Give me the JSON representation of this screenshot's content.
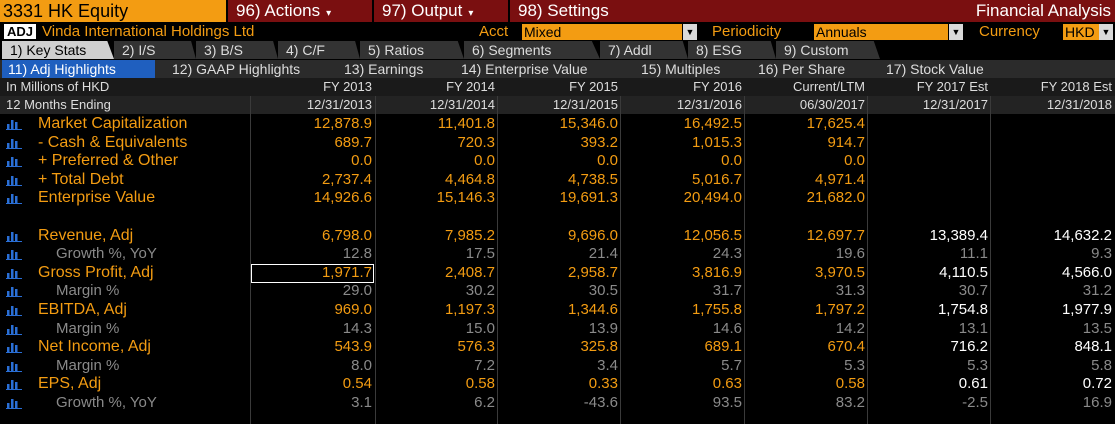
{
  "topbar": {
    "ticker": "3331 HK Equity",
    "menus": [
      {
        "label": "96) Actions",
        "caret": "▾"
      },
      {
        "label": "97) Output",
        "caret": "▾"
      },
      {
        "label": "98) Settings",
        "caret": ""
      }
    ],
    "title": "Financial Analysis"
  },
  "infobar": {
    "badge": "ADJ",
    "company": "Vinda International Holdings Ltd",
    "acct_label": "Acct",
    "acct_value": "Mixed",
    "periodicity_label": "Periodicity",
    "periodicity_value": "Annuals",
    "currency_label": "Currency",
    "currency_value": "HKD"
  },
  "tabs": [
    "1) Key Stats",
    "2) I/S",
    "3) B/S",
    "4) C/F",
    "5) Ratios",
    "6) Segments",
    "7) Addl",
    "8) ESG",
    "9) Custom"
  ],
  "subtabs": [
    "11) Adj Highlights",
    "12) GAAP Highlights",
    "13) Earnings",
    "14) Enterprise Value",
    "15) Multiples",
    "16) Per Share",
    "17) Stock Value"
  ],
  "header": {
    "row1_label": "In Millions of HKD",
    "row2_label": "12 Months Ending",
    "periods": [
      {
        "name": "FY 2013",
        "date": "12/31/2013"
      },
      {
        "name": "FY 2014",
        "date": "12/31/2014"
      },
      {
        "name": "FY 2015",
        "date": "12/31/2015"
      },
      {
        "name": "FY 2016",
        "date": "12/31/2016"
      },
      {
        "name": "Current/LTM",
        "date": "06/30/2017"
      },
      {
        "name": "FY 2017 Est",
        "date": "12/31/2017"
      },
      {
        "name": "FY 2018 Est",
        "date": "12/31/2018"
      }
    ]
  },
  "rows": [
    {
      "label": "Market Capitalization",
      "type": "main",
      "values": [
        "12,878.9",
        "11,401.8",
        "15,346.0",
        "16,492.5",
        "17,625.4",
        "",
        ""
      ]
    },
    {
      "label": "- Cash & Equivalents",
      "type": "mainw",
      "values": [
        "689.7",
        "720.3",
        "393.2",
        "1,015.3",
        "914.7",
        "",
        ""
      ]
    },
    {
      "label": "+ Preferred & Other",
      "type": "mainw",
      "values": [
        "0.0",
        "0.0",
        "0.0",
        "0.0",
        "0.0",
        "",
        ""
      ]
    },
    {
      "label": "+ Total Debt",
      "type": "mainw",
      "values": [
        "2,737.4",
        "4,464.8",
        "4,738.5",
        "5,016.7",
        "4,971.4",
        "",
        ""
      ]
    },
    {
      "label": "Enterprise Value",
      "type": "main",
      "values": [
        "14,926.6",
        "15,146.3",
        "19,691.3",
        "20,494.0",
        "21,682.0",
        "",
        ""
      ]
    },
    {
      "label": "",
      "type": "blank",
      "values": []
    },
    {
      "label": "Revenue, Adj",
      "type": "main",
      "values": [
        "6,798.0",
        "7,985.2",
        "9,696.0",
        "12,056.5",
        "12,697.7",
        "13,389.4",
        "14,632.2"
      ]
    },
    {
      "label": "Growth %, YoY",
      "type": "sub",
      "values": [
        "12.8",
        "17.5",
        "21.4",
        "24.3",
        "19.6",
        "11.1",
        "9.3"
      ]
    },
    {
      "label": "Gross Profit, Adj",
      "type": "main",
      "values": [
        "1,971.7",
        "2,408.7",
        "2,958.7",
        "3,816.9",
        "3,970.5",
        "4,110.5",
        "4,566.0"
      ]
    },
    {
      "label": "Margin %",
      "type": "sub",
      "values": [
        "29.0",
        "30.2",
        "30.5",
        "31.7",
        "31.3",
        "30.7",
        "31.2"
      ]
    },
    {
      "label": "EBITDA, Adj",
      "type": "main",
      "values": [
        "969.0",
        "1,197.3",
        "1,344.6",
        "1,755.8",
        "1,797.2",
        "1,754.8",
        "1,977.9"
      ]
    },
    {
      "label": "Margin %",
      "type": "sub",
      "values": [
        "14.3",
        "15.0",
        "13.9",
        "14.6",
        "14.2",
        "13.1",
        "13.5"
      ]
    },
    {
      "label": "Net Income, Adj",
      "type": "main",
      "values": [
        "543.9",
        "576.3",
        "325.8",
        "689.1",
        "670.4",
        "716.2",
        "848.1"
      ]
    },
    {
      "label": "Margin %",
      "type": "sub",
      "values": [
        "8.0",
        "7.2",
        "3.4",
        "5.7",
        "5.3",
        "5.3",
        "5.8"
      ]
    },
    {
      "label": "EPS, Adj",
      "type": "main",
      "values": [
        "0.54",
        "0.58",
        "0.33",
        "0.63",
        "0.58",
        "0.61",
        "0.72"
      ]
    },
    {
      "label": "Growth %, YoY",
      "type": "sub",
      "values": [
        "3.1",
        "6.2",
        "-43.6",
        "93.5",
        "83.2",
        "-2.5",
        "16.9"
      ]
    }
  ],
  "colors": {
    "accent": "#f39c12",
    "bar": "#7a0f10",
    "active_tab": "#1f5fbf"
  },
  "icons": {
    "row_icon": "bar-chart-icon",
    "caret": "chevron-down-icon"
  }
}
